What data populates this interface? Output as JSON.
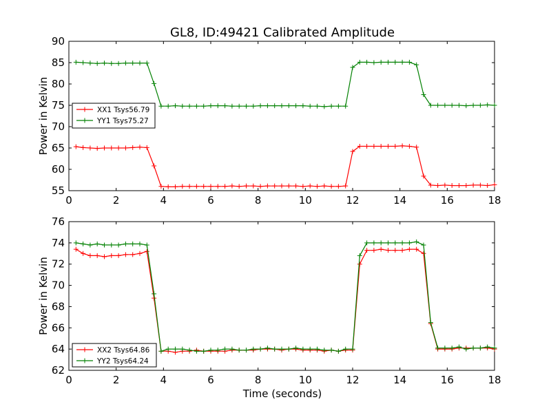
{
  "figure": {
    "title": "GL8, ID:49421 Calibrated Amplitude",
    "xlabel": "Time (seconds)"
  },
  "colors": {
    "xx": "#ff0000",
    "yy": "#008000"
  },
  "chart_data": [
    {
      "type": "line",
      "ylabel": "Power in Kelvin",
      "xlim": [
        0,
        18
      ],
      "ylim": [
        55,
        90
      ],
      "xticks": [
        "0",
        "2",
        "4",
        "6",
        "8",
        "10",
        "12",
        "14",
        "16",
        "18"
      ],
      "yticks": [
        "55",
        "60",
        "65",
        "70",
        "75",
        "80",
        "85",
        "90"
      ],
      "legend": "center-left",
      "x": [
        0.3,
        0.6,
        0.9,
        1.2,
        1.5,
        1.8,
        2.1,
        2.4,
        2.7,
        3.0,
        3.3,
        3.6,
        3.9,
        4.2,
        4.5,
        4.8,
        5.1,
        5.4,
        5.7,
        6.0,
        6.3,
        6.6,
        6.9,
        7.2,
        7.5,
        7.8,
        8.1,
        8.4,
        8.7,
        9.0,
        9.3,
        9.6,
        9.9,
        10.2,
        10.5,
        10.8,
        11.1,
        11.4,
        11.7,
        12.0,
        12.3,
        12.6,
        12.9,
        13.2,
        13.5,
        13.8,
        14.1,
        14.4,
        14.7,
        15.0,
        15.3,
        15.6,
        15.9,
        16.2,
        16.5,
        16.8,
        17.1,
        17.4,
        17.7,
        18.0
      ],
      "series": [
        {
          "name": "XX1 Tsys56.79",
          "color": "#ff0000",
          "values": [
            65.3,
            65.1,
            65.0,
            64.9,
            65.0,
            65.0,
            65.0,
            65.0,
            65.1,
            65.2,
            65.1,
            60.8,
            56.0,
            55.9,
            55.9,
            56.0,
            56.0,
            56.0,
            56.0,
            56.0,
            56.0,
            56.0,
            56.1,
            56.0,
            56.1,
            56.1,
            56.0,
            56.1,
            56.1,
            56.1,
            56.1,
            56.1,
            56.0,
            56.1,
            56.0,
            56.1,
            56.0,
            56.0,
            56.1,
            64.2,
            65.4,
            65.4,
            65.4,
            65.4,
            65.4,
            65.4,
            65.5,
            65.4,
            65.2,
            58.4,
            56.3,
            56.2,
            56.3,
            56.2,
            56.2,
            56.2,
            56.3,
            56.3,
            56.2,
            56.4
          ]
        },
        {
          "name": "YY1 Tsys75.27",
          "color": "#008000",
          "values": [
            85.1,
            85.0,
            84.9,
            84.8,
            84.9,
            84.8,
            84.8,
            84.9,
            84.9,
            84.9,
            84.9,
            80.1,
            74.8,
            74.8,
            74.9,
            74.8,
            74.8,
            74.8,
            74.8,
            74.9,
            74.9,
            74.9,
            74.8,
            74.8,
            74.8,
            74.8,
            74.9,
            74.9,
            74.9,
            74.9,
            74.9,
            74.9,
            74.9,
            74.8,
            74.8,
            74.7,
            74.8,
            74.8,
            74.8,
            83.9,
            85.1,
            85.1,
            85.0,
            85.1,
            85.1,
            85.1,
            85.1,
            85.1,
            84.5,
            77.5,
            75.0,
            75.0,
            75.0,
            75.0,
            75.0,
            74.9,
            75.0,
            75.0,
            75.1,
            75.0
          ]
        }
      ]
    },
    {
      "type": "line",
      "ylabel": "Power in Kelvin",
      "xlim": [
        0,
        18
      ],
      "ylim": [
        62,
        76
      ],
      "xticks": [
        "0",
        "2",
        "4",
        "6",
        "8",
        "10",
        "12",
        "14",
        "16",
        "18"
      ],
      "yticks": [
        "62",
        "64",
        "66",
        "68",
        "70",
        "72",
        "74",
        "76"
      ],
      "legend": "lower-left",
      "x": [
        0.3,
        0.6,
        0.9,
        1.2,
        1.5,
        1.8,
        2.1,
        2.4,
        2.7,
        3.0,
        3.3,
        3.6,
        3.9,
        4.2,
        4.5,
        4.8,
        5.1,
        5.4,
        5.7,
        6.0,
        6.3,
        6.6,
        6.9,
        7.2,
        7.5,
        7.8,
        8.1,
        8.4,
        8.7,
        9.0,
        9.3,
        9.6,
        9.9,
        10.2,
        10.5,
        10.8,
        11.1,
        11.4,
        11.7,
        12.0,
        12.3,
        12.6,
        12.9,
        13.2,
        13.5,
        13.8,
        14.1,
        14.4,
        14.7,
        15.0,
        15.3,
        15.6,
        15.9,
        16.2,
        16.5,
        16.8,
        17.1,
        17.4,
        17.7,
        18.0
      ],
      "series": [
        {
          "name": "XX2 Tsys64.86",
          "color": "#ff0000",
          "values": [
            73.4,
            73.0,
            72.8,
            72.8,
            72.7,
            72.8,
            72.8,
            72.9,
            72.9,
            73.0,
            73.2,
            68.8,
            63.8,
            63.8,
            63.7,
            63.8,
            63.8,
            63.9,
            63.8,
            63.8,
            63.8,
            63.8,
            63.9,
            63.9,
            63.9,
            63.9,
            64.0,
            64.0,
            64.0,
            63.9,
            64.0,
            64.0,
            63.9,
            63.9,
            63.9,
            63.8,
            63.9,
            63.8,
            63.9,
            63.9,
            72.0,
            73.3,
            73.3,
            73.4,
            73.3,
            73.3,
            73.3,
            73.4,
            73.4,
            73.0,
            66.4,
            64.0,
            64.0,
            64.0,
            64.1,
            64.1,
            64.1,
            64.1,
            64.1,
            64.0
          ]
        },
        {
          "name": "YY2 Tsys64.24",
          "color": "#008000",
          "values": [
            74.0,
            73.9,
            73.8,
            73.9,
            73.8,
            73.8,
            73.8,
            73.9,
            73.9,
            73.9,
            73.8,
            69.2,
            63.8,
            64.0,
            64.0,
            64.0,
            63.9,
            63.8,
            63.8,
            63.9,
            63.9,
            64.0,
            64.0,
            63.9,
            63.9,
            64.0,
            64.0,
            64.1,
            64.0,
            64.0,
            64.0,
            64.1,
            64.0,
            64.0,
            64.0,
            63.9,
            63.9,
            63.8,
            64.0,
            64.0,
            72.8,
            74.0,
            74.0,
            74.0,
            74.0,
            74.0,
            74.0,
            74.0,
            74.1,
            73.8,
            66.5,
            64.1,
            64.1,
            64.1,
            64.2,
            64.0,
            64.1,
            64.1,
            64.2,
            64.1
          ]
        }
      ]
    }
  ]
}
